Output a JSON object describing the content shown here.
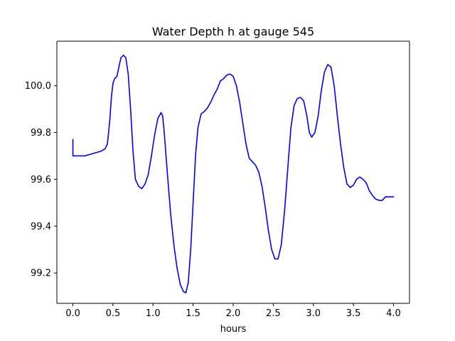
{
  "chart_data": {
    "type": "line",
    "title": "Water Depth h at gauge 545",
    "xlabel": "hours",
    "ylabel": "",
    "xlim": [
      -0.2,
      4.2
    ],
    "ylim": [
      99.07,
      100.19
    ],
    "xticks": [
      0.0,
      0.5,
      1.0,
      1.5,
      2.0,
      2.5,
      3.0,
      3.5,
      4.0
    ],
    "xtick_labels": [
      "0.0",
      "0.5",
      "1.0",
      "1.5",
      "2.0",
      "2.5",
      "3.0",
      "3.5",
      "4.0"
    ],
    "yticks": [
      99.2,
      99.4,
      99.6,
      99.8,
      100.0
    ],
    "ytick_labels": [
      "99.2",
      "99.4",
      "99.6",
      "99.8",
      "100.0"
    ],
    "grid": false,
    "series": [
      {
        "color": "#0000ff",
        "x": [
          0.0,
          0.0,
          0.05,
          0.1,
          0.15,
          0.2,
          0.25,
          0.3,
          0.35,
          0.4,
          0.43,
          0.46,
          0.48,
          0.5,
          0.52,
          0.55,
          0.58,
          0.6,
          0.63,
          0.66,
          0.69,
          0.72,
          0.75,
          0.78,
          0.82,
          0.86,
          0.9,
          0.94,
          0.98,
          1.02,
          1.06,
          1.1,
          1.12,
          1.14,
          1.18,
          1.22,
          1.26,
          1.3,
          1.34,
          1.38,
          1.41,
          1.44,
          1.47,
          1.5,
          1.53,
          1.56,
          1.6,
          1.64,
          1.68,
          1.72,
          1.76,
          1.8,
          1.84,
          1.88,
          1.92,
          1.96,
          2.0,
          2.04,
          2.08,
          2.12,
          2.16,
          2.2,
          2.24,
          2.28,
          2.32,
          2.36,
          2.4,
          2.44,
          2.48,
          2.52,
          2.56,
          2.6,
          2.64,
          2.68,
          2.72,
          2.76,
          2.8,
          2.84,
          2.88,
          2.92,
          2.95,
          2.98,
          3.02,
          3.06,
          3.1,
          3.14,
          3.18,
          3.22,
          3.26,
          3.3,
          3.34,
          3.38,
          3.42,
          3.46,
          3.5,
          3.54,
          3.58,
          3.62,
          3.66,
          3.7,
          3.74,
          3.78,
          3.82,
          3.86,
          3.9,
          3.94,
          3.97,
          4.0
        ],
        "y": [
          99.77,
          99.7,
          99.7,
          99.7,
          99.7,
          99.705,
          99.71,
          99.715,
          99.72,
          99.73,
          99.75,
          99.85,
          99.95,
          100.01,
          100.03,
          100.04,
          100.09,
          100.12,
          100.13,
          100.12,
          100.05,
          99.9,
          99.72,
          99.6,
          99.57,
          99.56,
          99.58,
          99.62,
          99.7,
          99.79,
          99.86,
          99.885,
          99.87,
          99.8,
          99.62,
          99.45,
          99.32,
          99.22,
          99.15,
          99.12,
          99.115,
          99.16,
          99.3,
          99.5,
          99.7,
          99.82,
          99.88,
          99.89,
          99.905,
          99.93,
          99.96,
          99.985,
          100.02,
          100.03,
          100.045,
          100.05,
          100.04,
          100.0,
          99.93,
          99.84,
          99.75,
          99.69,
          99.675,
          99.66,
          99.63,
          99.57,
          99.48,
          99.38,
          99.3,
          99.26,
          99.26,
          99.32,
          99.46,
          99.64,
          99.82,
          99.915,
          99.945,
          99.95,
          99.935,
          99.87,
          99.8,
          99.78,
          99.8,
          99.87,
          99.98,
          100.06,
          100.09,
          100.08,
          100.0,
          99.87,
          99.75,
          99.65,
          99.58,
          99.565,
          99.575,
          99.6,
          99.61,
          99.6,
          99.585,
          99.55,
          99.53,
          99.515,
          99.51,
          99.51,
          99.525,
          99.525,
          99.525,
          99.525
        ]
      }
    ]
  }
}
